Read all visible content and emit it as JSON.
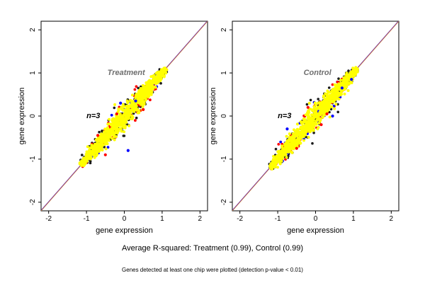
{
  "chart_data": [
    {
      "type": "scatter",
      "title": "Treatment",
      "annotation": "n=3",
      "xlabel": "gene expression",
      "ylabel": "gene expression",
      "xlim": [
        -2.2,
        2.2
      ],
      "ylim": [
        -2.2,
        2.2
      ],
      "x_ticks": [
        -2,
        -1,
        0,
        1,
        2
      ],
      "y_ticks": [
        -2,
        -1,
        0,
        1,
        2
      ],
      "grid": false,
      "reference_lines": [
        {
          "name": "identity",
          "color": "#f5a623"
        },
        {
          "name": "fit",
          "color": "#7a3aa0"
        }
      ],
      "point_colors": {
        "background": "#1a1a1a",
        "blue": "#0000ff",
        "red": "#ff0000",
        "main": "#ffff00"
      },
      "cloud": {
        "x_range": [
          -1.15,
          1.1
        ],
        "y_range": [
          -1.15,
          1.15
        ],
        "orientation": "diagonal"
      },
      "outliers": [
        {
          "color": "blue",
          "x": 0.1,
          "y": -0.8
        },
        {
          "color": "blue",
          "x": -0.1,
          "y": 0.3
        },
        {
          "color": "blue",
          "x": 0.3,
          "y": 0.35
        },
        {
          "color": "red",
          "x": -0.5,
          "y": -0.9
        },
        {
          "color": "red",
          "x": -0.2,
          "y": 0.05
        },
        {
          "color": "red",
          "x": 0.5,
          "y": 0.15
        },
        {
          "color": "red",
          "x": -0.7,
          "y": -0.45
        }
      ]
    },
    {
      "type": "scatter",
      "title": "Control",
      "annotation": "n=3",
      "xlabel": "gene expression",
      "ylabel": "gene expression",
      "xlim": [
        -2.2,
        2.2
      ],
      "ylim": [
        -2.2,
        2.2
      ],
      "x_ticks": [
        -2,
        -1,
        0,
        1,
        2
      ],
      "y_ticks": [
        -2,
        -1,
        0,
        1,
        2
      ],
      "grid": false,
      "reference_lines": [
        {
          "name": "identity",
          "color": "#f5a623"
        },
        {
          "name": "fit",
          "color": "#7a3aa0"
        }
      ],
      "point_colors": {
        "background": "#1a1a1a",
        "blue": "#0000ff",
        "red": "#ff0000",
        "main": "#ffff00"
      },
      "cloud": {
        "x_range": [
          -1.2,
          1.1
        ],
        "y_range": [
          -1.15,
          1.2
        ],
        "orientation": "diagonal"
      },
      "outliers": [
        {
          "color": "blue",
          "x": -0.75,
          "y": -0.3
        },
        {
          "color": "blue",
          "x": 0.45,
          "y": 0.0
        },
        {
          "color": "blue",
          "x": 0.7,
          "y": 0.65
        },
        {
          "color": "blue",
          "x": 0.95,
          "y": 0.85
        },
        {
          "color": "red",
          "x": -0.5,
          "y": -0.75
        },
        {
          "color": "red",
          "x": -0.2,
          "y": 0.2
        },
        {
          "color": "red",
          "x": 0.3,
          "y": 0.05
        },
        {
          "color": "red",
          "x": 0.15,
          "y": -0.2
        }
      ]
    }
  ],
  "captions": {
    "main": "Average R-squared: Treatment (0.99), Control (0.99)",
    "sub": "Genes detected at least one chip were plotted (detection p-value < 0.01)"
  }
}
